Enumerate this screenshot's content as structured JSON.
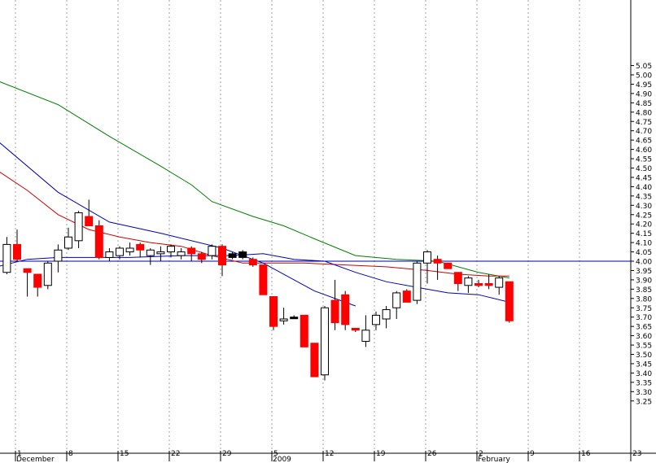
{
  "chart_data": {
    "type": "candlestick",
    "ylim": [
      3.22,
      5.1
    ],
    "y_ticks": [
      3.25,
      3.3,
      3.35,
      3.4,
      3.45,
      3.5,
      3.55,
      3.6,
      3.65,
      3.7,
      3.75,
      3.8,
      3.85,
      3.9,
      3.95,
      4.0,
      4.05,
      4.1,
      4.15,
      4.2,
      4.25,
      4.3,
      4.35,
      4.4,
      4.45,
      4.5,
      4.55,
      4.6,
      4.65,
      4.7,
      4.75,
      4.8,
      4.85,
      4.9,
      4.95,
      5.0,
      5.05
    ],
    "x_ticks": [
      {
        "label": "1",
        "day": 1
      },
      {
        "label": "8",
        "day": 6
      },
      {
        "label": "15",
        "day": 11
      },
      {
        "label": "22",
        "day": 16
      },
      {
        "label": "29",
        "day": 21
      },
      {
        "label": "5",
        "day": 26
      },
      {
        "label": "12",
        "day": 31
      },
      {
        "label": "19",
        "day": 36
      },
      {
        "label": "26",
        "day": 41
      },
      {
        "label": "2",
        "day": 46
      },
      {
        "label": "9",
        "day": 51
      },
      {
        "label": "16",
        "day": 56
      },
      {
        "label": "23",
        "day": 61
      }
    ],
    "period_labels": [
      {
        "label": "December",
        "day": 1
      },
      {
        "label": "2009",
        "day": 26
      },
      {
        "label": "February",
        "day": 46
      }
    ],
    "reference_line": 4.0,
    "candles": [
      {
        "day": 0,
        "o": 3.94,
        "h": 4.13,
        "l": 3.93,
        "c": 4.09,
        "color": "white"
      },
      {
        "day": 1,
        "o": 4.09,
        "h": 4.17,
        "l": 4.0,
        "c": 4.01,
        "color": "red"
      },
      {
        "day": 2,
        "o": 3.96,
        "h": 3.96,
        "l": 3.81,
        "c": 3.94,
        "color": "red"
      },
      {
        "day": 3,
        "o": 3.93,
        "h": 3.93,
        "l": 3.81,
        "c": 3.86,
        "color": "red"
      },
      {
        "day": 4,
        "o": 3.87,
        "h": 4.0,
        "l": 3.85,
        "c": 3.99,
        "color": "white"
      },
      {
        "day": 5,
        "o": 4.0,
        "h": 4.09,
        "l": 3.94,
        "c": 4.06,
        "color": "white"
      },
      {
        "day": 6,
        "o": 4.07,
        "h": 4.18,
        "l": 4.06,
        "c": 4.13,
        "color": "white"
      },
      {
        "day": 7,
        "o": 4.11,
        "h": 4.27,
        "l": 4.07,
        "c": 4.26,
        "color": "white"
      },
      {
        "day": 8,
        "o": 4.24,
        "h": 4.33,
        "l": 4.19,
        "c": 4.19,
        "color": "red"
      },
      {
        "day": 9,
        "o": 4.19,
        "h": 4.22,
        "l": 4.01,
        "c": 4.02,
        "color": "red"
      },
      {
        "day": 10,
        "o": 4.02,
        "h": 4.07,
        "l": 4.0,
        "c": 4.05,
        "color": "white"
      },
      {
        "day": 11,
        "o": 4.03,
        "h": 4.08,
        "l": 4.01,
        "c": 4.07,
        "color": "white"
      },
      {
        "day": 12,
        "o": 4.05,
        "h": 4.1,
        "l": 4.03,
        "c": 4.07,
        "color": "white"
      },
      {
        "day": 13,
        "o": 4.09,
        "h": 4.1,
        "l": 4.02,
        "c": 4.06,
        "color": "red"
      },
      {
        "day": 14,
        "o": 4.03,
        "h": 4.07,
        "l": 3.98,
        "c": 4.06,
        "color": "white"
      },
      {
        "day": 15,
        "o": 4.04,
        "h": 4.08,
        "l": 4.0,
        "c": 4.05,
        "color": "white"
      },
      {
        "day": 16,
        "o": 4.05,
        "h": 4.09,
        "l": 4.02,
        "c": 4.08,
        "color": "white"
      },
      {
        "day": 17,
        "o": 4.03,
        "h": 4.07,
        "l": 4.01,
        "c": 4.05,
        "color": "white"
      },
      {
        "day": 18,
        "o": 4.07,
        "h": 4.08,
        "l": 4.0,
        "c": 4.04,
        "color": "red"
      },
      {
        "day": 19,
        "o": 4.04,
        "h": 4.05,
        "l": 3.99,
        "c": 4.01,
        "color": "red"
      },
      {
        "day": 20,
        "o": 4.03,
        "h": 4.09,
        "l": 4.01,
        "c": 4.08,
        "color": "white"
      },
      {
        "day": 21,
        "o": 4.08,
        "h": 4.09,
        "l": 3.92,
        "c": 3.98,
        "color": "red"
      },
      {
        "day": 22,
        "o": 4.04,
        "h": 4.05,
        "l": 4.01,
        "c": 4.02,
        "color": "black"
      },
      {
        "day": 23,
        "o": 4.05,
        "h": 4.06,
        "l": 4.01,
        "c": 4.02,
        "color": "black"
      },
      {
        "day": 24,
        "o": 4.01,
        "h": 4.02,
        "l": 3.97,
        "c": 3.98,
        "color": "red"
      },
      {
        "day": 25,
        "o": 3.98,
        "h": 3.98,
        "l": 3.82,
        "c": 3.82,
        "color": "red"
      },
      {
        "day": 26,
        "o": 3.81,
        "h": 3.81,
        "l": 3.63,
        "c": 3.65,
        "color": "red"
      },
      {
        "day": 27,
        "o": 3.68,
        "h": 3.75,
        "l": 3.66,
        "c": 3.69,
        "color": "white"
      },
      {
        "day": 28,
        "o": 3.7,
        "h": 3.71,
        "l": 3.69,
        "c": 3.7,
        "color": "black"
      },
      {
        "day": 29,
        "o": 3.71,
        "h": 3.71,
        "l": 3.54,
        "c": 3.54,
        "color": "red"
      },
      {
        "day": 30,
        "o": 3.56,
        "h": 3.56,
        "l": 3.38,
        "c": 3.38,
        "color": "red"
      },
      {
        "day": 31,
        "o": 3.39,
        "h": 3.76,
        "l": 3.36,
        "c": 3.75,
        "color": "white"
      },
      {
        "day": 32,
        "o": 3.79,
        "h": 3.9,
        "l": 3.63,
        "c": 3.67,
        "color": "red"
      },
      {
        "day": 33,
        "o": 3.82,
        "h": 3.84,
        "l": 3.63,
        "c": 3.66,
        "color": "red"
      },
      {
        "day": 34,
        "o": 3.64,
        "h": 3.64,
        "l": 3.62,
        "c": 3.63,
        "color": "red"
      },
      {
        "day": 35,
        "o": 3.57,
        "h": 3.71,
        "l": 3.54,
        "c": 3.63,
        "color": "white"
      },
      {
        "day": 36,
        "o": 3.66,
        "h": 3.73,
        "l": 3.63,
        "c": 3.71,
        "color": "white"
      },
      {
        "day": 37,
        "o": 3.69,
        "h": 3.76,
        "l": 3.64,
        "c": 3.74,
        "color": "white"
      },
      {
        "day": 38,
        "o": 3.75,
        "h": 3.84,
        "l": 3.69,
        "c": 3.83,
        "color": "white"
      },
      {
        "day": 39,
        "o": 3.84,
        "h": 3.85,
        "l": 3.78,
        "c": 3.78,
        "color": "red"
      },
      {
        "day": 40,
        "o": 3.79,
        "h": 4.0,
        "l": 3.77,
        "c": 3.99,
        "color": "white"
      },
      {
        "day": 41,
        "o": 3.99,
        "h": 4.06,
        "l": 3.88,
        "c": 4.05,
        "color": "white"
      },
      {
        "day": 42,
        "o": 4.01,
        "h": 4.03,
        "l": 3.9,
        "c": 3.99,
        "color": "red"
      },
      {
        "day": 43,
        "o": 3.99,
        "h": 3.99,
        "l": 3.96,
        "c": 3.96,
        "color": "red"
      },
      {
        "day": 44,
        "o": 3.94,
        "h": 3.94,
        "l": 3.84,
        "c": 3.88,
        "color": "red"
      },
      {
        "day": 45,
        "o": 3.87,
        "h": 3.92,
        "l": 3.83,
        "c": 3.91,
        "color": "white"
      },
      {
        "day": 46,
        "o": 3.87,
        "h": 3.9,
        "l": 3.86,
        "c": 3.88,
        "color": "red"
      },
      {
        "day": 47,
        "o": 3.87,
        "h": 3.93,
        "l": 3.85,
        "c": 3.88,
        "color": "red"
      },
      {
        "day": 48,
        "o": 3.86,
        "h": 3.92,
        "l": 3.82,
        "c": 3.91,
        "color": "white"
      },
      {
        "day": 49,
        "o": 3.89,
        "h": 3.89,
        "l": 3.67,
        "c": 3.68,
        "color": "red"
      }
    ],
    "series": [
      {
        "color": "#008000",
        "points": [
          [
            -1,
            4.97
          ],
          [
            5,
            4.84
          ],
          [
            10,
            4.67
          ],
          [
            15,
            4.51
          ],
          [
            18,
            4.41
          ],
          [
            20,
            4.32
          ],
          [
            24,
            4.24
          ],
          [
            27,
            4.19
          ],
          [
            30,
            4.12
          ],
          [
            34,
            4.03
          ],
          [
            38,
            4.01
          ],
          [
            42,
            4.0
          ],
          [
            46,
            3.94
          ],
          [
            49,
            3.91
          ]
        ]
      },
      {
        "color": "#d00000",
        "points": [
          [
            -1,
            4.49
          ],
          [
            2,
            4.38
          ],
          [
            5,
            4.25
          ],
          [
            8,
            4.17
          ],
          [
            11,
            4.13
          ],
          [
            14,
            4.1
          ],
          [
            17,
            4.08
          ],
          [
            20,
            4.03
          ],
          [
            23,
            3.99
          ],
          [
            26,
            3.99
          ],
          [
            29,
            3.99
          ],
          [
            33,
            3.98
          ],
          [
            37,
            3.97
          ],
          [
            41,
            3.95
          ],
          [
            44,
            3.93
          ],
          [
            47,
            3.92
          ],
          [
            49,
            3.92
          ]
        ]
      },
      {
        "color": "#0000c0",
        "points": [
          [
            -1,
            4.65
          ],
          [
            5,
            4.37
          ],
          [
            10,
            4.21
          ],
          [
            15,
            4.15
          ],
          [
            21,
            4.07
          ],
          [
            25,
            3.99
          ],
          [
            30,
            3.84
          ],
          [
            34,
            3.76
          ]
        ]
      },
      {
        "color": "#0000c0",
        "points": [
          [
            -1,
            3.97
          ],
          [
            2,
            4.01
          ],
          [
            5,
            4.02
          ],
          [
            8,
            4.02
          ],
          [
            12,
            4.02
          ],
          [
            17,
            4.03
          ],
          [
            22,
            4.03
          ],
          [
            25,
            4.04
          ],
          [
            28,
            4.01
          ],
          [
            31,
            4.0
          ],
          [
            34,
            3.94
          ],
          [
            37,
            3.89
          ],
          [
            40,
            3.86
          ],
          [
            43,
            3.83
          ],
          [
            46,
            3.82
          ],
          [
            49,
            3.78
          ]
        ]
      }
    ]
  }
}
